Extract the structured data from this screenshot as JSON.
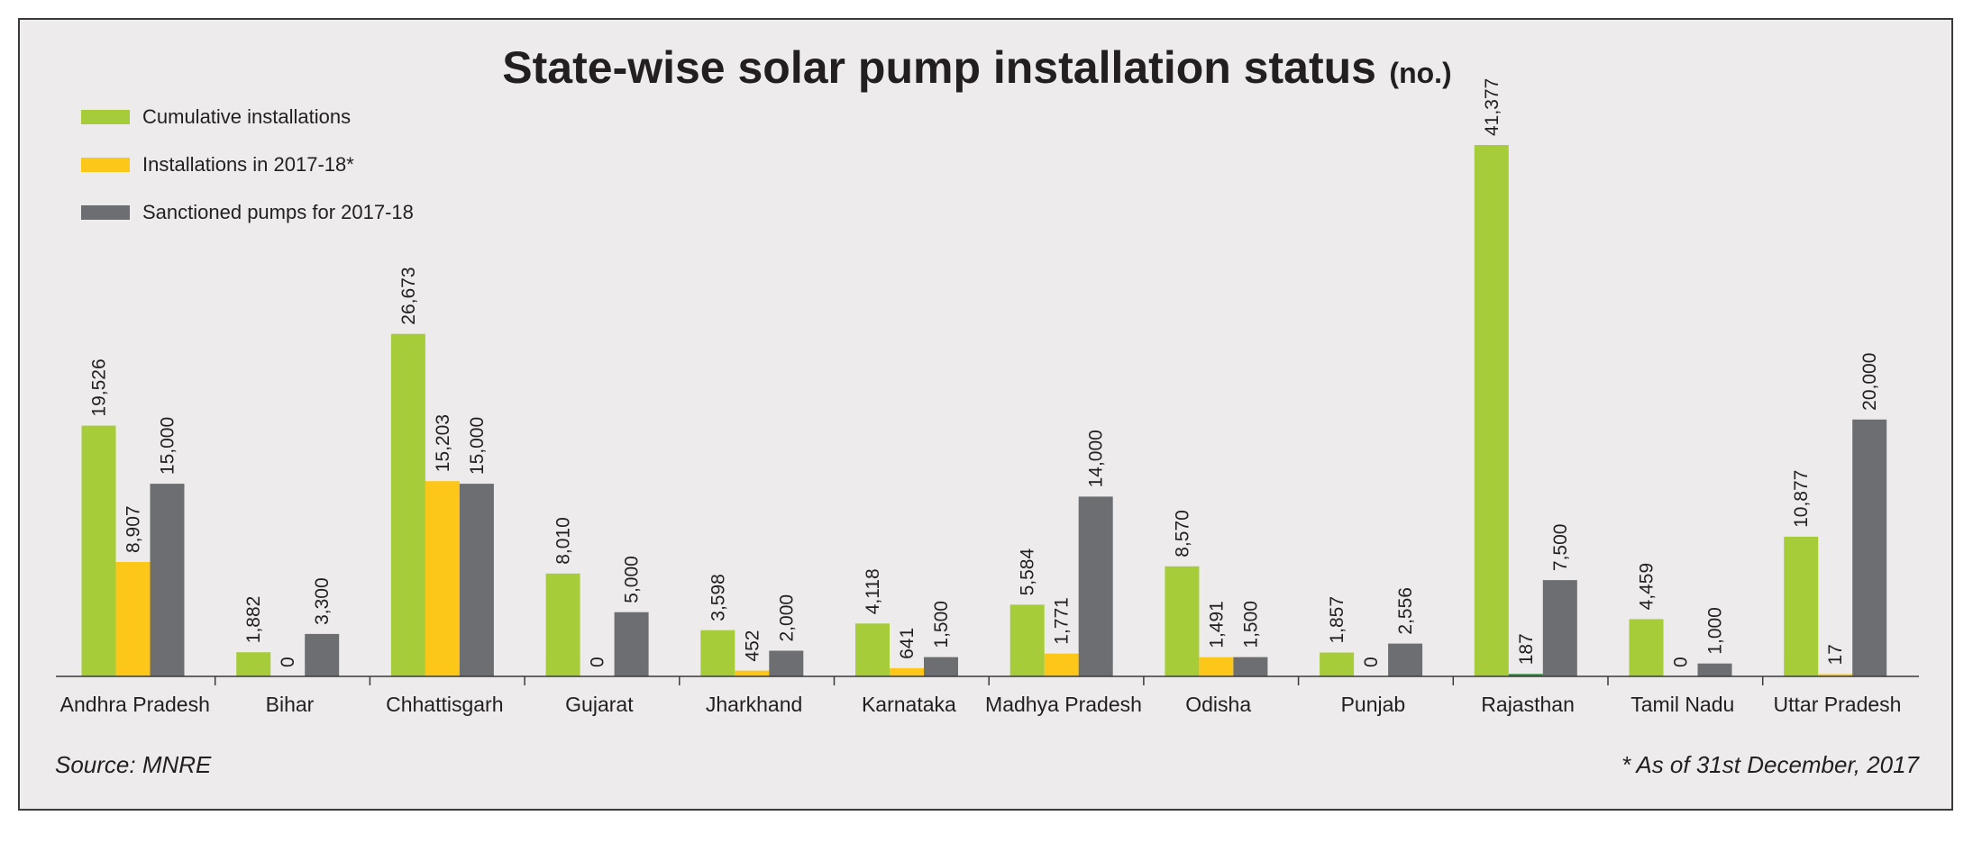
{
  "colors": {
    "cumulative": "#a6cd39",
    "installations": "#fcc719",
    "sanctioned": "#6d6e71",
    "rajasthan_installations": "#2e8b3e"
  },
  "chart_data": {
    "type": "bar",
    "title": "State-wise solar pump installation status",
    "title_unit": "(no.)",
    "xlabel": "",
    "ylabel": "",
    "ylim": [
      0,
      42000
    ],
    "grid": false,
    "legend_position": "top-left",
    "categories": [
      "Andhra Pradesh",
      "Bihar",
      "Chhattisgarh",
      "Gujarat",
      "Jharkhand",
      "Karnataka",
      "Madhya Pradesh",
      "Odisha",
      "Punjab",
      "Rajasthan",
      "Tamil Nadu",
      "Uttar Pradesh"
    ],
    "series": [
      {
        "name": "Cumulative installations",
        "color": "#a6cd39",
        "values": [
          19526,
          1882,
          26673,
          8010,
          3598,
          4118,
          5584,
          8570,
          1857,
          41377,
          4459,
          10877
        ],
        "labels": [
          "19,526",
          "1,882",
          "26,673",
          "8,010",
          "3,598",
          "4,118",
          "5,584",
          "8,570",
          "1,857",
          "41,377",
          "4,459",
          "10,877"
        ]
      },
      {
        "name": "Installations in 2017-18*",
        "color": "#fcc719",
        "values": [
          8907,
          0,
          15203,
          0,
          452,
          641,
          1771,
          1491,
          0,
          187,
          0,
          17
        ],
        "labels": [
          "8,907",
          "0",
          "15,203",
          "0",
          "452",
          "641",
          "1,771",
          "1,491",
          "0",
          "187",
          "0",
          "17"
        ]
      },
      {
        "name": "Sanctioned pumps for 2017-18",
        "color": "#6d6e71",
        "values": [
          15000,
          3300,
          15000,
          5000,
          2000,
          1500,
          14000,
          1500,
          2556,
          7500,
          1000,
          20000
        ],
        "labels": [
          "15,000",
          "3,300",
          "15,000",
          "5,000",
          "2,000",
          "1,500",
          "14,000",
          "1,500",
          "2,556",
          "7,500",
          "1,000",
          "20,000"
        ]
      }
    ]
  },
  "footer": {
    "source": "Source: MNRE",
    "note": "* As of 31st December, 2017"
  }
}
